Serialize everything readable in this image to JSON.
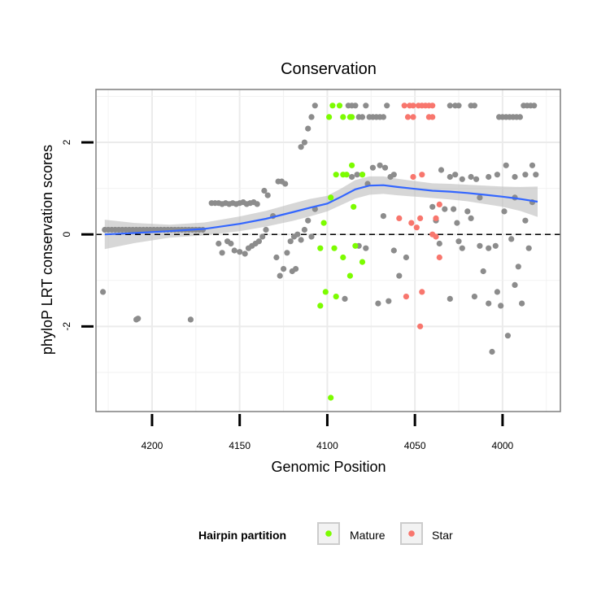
{
  "chart_data": {
    "type": "scatter",
    "title": "Conservation",
    "xlabel": "Genomic Position",
    "ylabel": "phyloP LRT conservation scores",
    "xlim": [
      4232,
      3967
    ],
    "x_reversed": true,
    "ylim": [
      -3.85,
      3.15
    ],
    "xticks": [
      4200,
      4150,
      4100,
      4050,
      4000
    ],
    "xtick_labels": [
      "4200",
      "4150",
      "4100",
      "4050",
      "4000"
    ],
    "yticks": [
      -2,
      0,
      2
    ],
    "ytick_labels": [
      "-2",
      "0",
      "2"
    ],
    "grid": true,
    "reference_line": {
      "y": 0,
      "style": "dashed"
    },
    "legend": {
      "title": "Hairpin partition",
      "position": "bottom",
      "entries": [
        {
          "label": "Mature",
          "color": "#7CFC00"
        },
        {
          "label": "Star",
          "color": "#F8766D"
        }
      ]
    },
    "colors": {
      "other": "#8c8c8c",
      "smooth_line": "#3366FF",
      "ribbon": "#bdbdbd"
    },
    "series": [
      {
        "name": "Other",
        "color": "#8c8c8c",
        "points": [
          [
            4227,
            0.1
          ],
          [
            4225,
            0.1
          ],
          [
            4223,
            0.1
          ],
          [
            4221,
            0.1
          ],
          [
            4219,
            0.1
          ],
          [
            4217,
            0.1
          ],
          [
            4215,
            0.1
          ],
          [
            4213,
            0.1
          ],
          [
            4211,
            0.1
          ],
          [
            4209,
            0.1
          ],
          [
            4207,
            0.1
          ],
          [
            4205,
            0.1
          ],
          [
            4203,
            0.1
          ],
          [
            4201,
            0.1
          ],
          [
            4199,
            0.1
          ],
          [
            4197,
            0.1
          ],
          [
            4195,
            0.1
          ],
          [
            4193,
            0.1
          ],
          [
            4191,
            0.1
          ],
          [
            4189,
            0.1
          ],
          [
            4187,
            0.1
          ],
          [
            4185,
            0.1
          ],
          [
            4183,
            0.1
          ],
          [
            4181,
            0.1
          ],
          [
            4179,
            0.1
          ],
          [
            4177,
            0.1
          ],
          [
            4175,
            0.1
          ],
          [
            4173,
            0.1
          ],
          [
            4171,
            0.1
          ],
          [
            4228,
            -1.25
          ],
          [
            4209,
            -1.85
          ],
          [
            4208,
            -1.83
          ],
          [
            4178,
            -1.85
          ],
          [
            4166,
            0.68
          ],
          [
            4164,
            0.68
          ],
          [
            4162,
            0.68
          ],
          [
            4160,
            0.66
          ],
          [
            4158,
            0.68
          ],
          [
            4156,
            0.66
          ],
          [
            4154,
            0.68
          ],
          [
            4152,
            0.66
          ],
          [
            4150,
            0.68
          ],
          [
            4148,
            0.7
          ],
          [
            4146,
            0.66
          ],
          [
            4144,
            0.68
          ],
          [
            4142,
            0.7
          ],
          [
            4140,
            0.66
          ],
          [
            4162,
            -0.2
          ],
          [
            4160,
            -0.4
          ],
          [
            4157,
            -0.15
          ],
          [
            4155,
            -0.2
          ],
          [
            4153,
            -0.35
          ],
          [
            4150,
            -0.38
          ],
          [
            4147,
            -0.42
          ],
          [
            4145,
            -0.3
          ],
          [
            4143,
            -0.25
          ],
          [
            4141,
            -0.2
          ],
          [
            4139,
            -0.15
          ],
          [
            4137,
            -0.05
          ],
          [
            4135,
            0.1
          ],
          [
            4136,
            0.95
          ],
          [
            4134,
            0.85
          ],
          [
            4131,
            0.4
          ],
          [
            4129,
            -0.5
          ],
          [
            4127,
            -0.9
          ],
          [
            4125,
            -0.75
          ],
          [
            4123,
            -0.4
          ],
          [
            4121,
            -0.15
          ],
          [
            4119,
            -0.05
          ],
          [
            4117,
            0.0
          ],
          [
            4115,
            -0.12
          ],
          [
            4113,
            0.1
          ],
          [
            4111,
            0.3
          ],
          [
            4109,
            -0.05
          ],
          [
            4107,
            0.55
          ],
          [
            4128,
            1.15
          ],
          [
            4126,
            1.15
          ],
          [
            4124,
            1.1
          ],
          [
            4120,
            -0.8
          ],
          [
            4118,
            -0.75
          ],
          [
            4115,
            1.9
          ],
          [
            4113,
            2.0
          ],
          [
            4111,
            2.3
          ],
          [
            4109,
            2.55
          ],
          [
            4107,
            2.8
          ],
          [
            4088,
            2.8
          ],
          [
            4086,
            2.8
          ],
          [
            4084,
            2.8
          ],
          [
            4082,
            2.55
          ],
          [
            4080,
            2.55
          ],
          [
            4078,
            2.8
          ],
          [
            4076,
            2.55
          ],
          [
            4074,
            2.55
          ],
          [
            4072,
            2.55
          ],
          [
            4070,
            2.55
          ],
          [
            4068,
            2.55
          ],
          [
            4066,
            2.8
          ],
          [
            4086,
            1.25
          ],
          [
            4083,
            1.3
          ],
          [
            4080,
            1.3
          ],
          [
            4077,
            1.1
          ],
          [
            4074,
            1.45
          ],
          [
            4070,
            1.5
          ],
          [
            4067,
            1.45
          ],
          [
            4064,
            1.25
          ],
          [
            4062,
            1.3
          ],
          [
            4090,
            -1.4
          ],
          [
            4082,
            -0.25
          ],
          [
            4078,
            -0.3
          ],
          [
            4071,
            -1.5
          ],
          [
            4068,
            0.4
          ],
          [
            4065,
            -1.45
          ],
          [
            4062,
            -0.35
          ],
          [
            4059,
            -0.9
          ],
          [
            4055,
            -0.5
          ],
          [
            4030,
            2.8
          ],
          [
            4027,
            2.8
          ],
          [
            4025,
            2.8
          ],
          [
            4018,
            2.8
          ],
          [
            4016,
            2.8
          ],
          [
            4002,
            2.55
          ],
          [
            4000,
            2.55
          ],
          [
            3998,
            2.55
          ],
          [
            3996,
            2.55
          ],
          [
            3994,
            2.55
          ],
          [
            3992,
            2.55
          ],
          [
            3990,
            2.55
          ],
          [
            3988,
            2.8
          ],
          [
            3986,
            2.8
          ],
          [
            3984,
            2.8
          ],
          [
            3982,
            2.8
          ],
          [
            4035,
            1.4
          ],
          [
            4030,
            1.25
          ],
          [
            4027,
            1.3
          ],
          [
            4023,
            1.2
          ],
          [
            4018,
            1.25
          ],
          [
            4015,
            1.2
          ],
          [
            4008,
            1.25
          ],
          [
            4003,
            1.3
          ],
          [
            3998,
            1.5
          ],
          [
            3993,
            1.25
          ],
          [
            3987,
            1.3
          ],
          [
            3983,
            1.5
          ],
          [
            3981,
            1.3
          ],
          [
            4040,
            0.6
          ],
          [
            4038,
            0.3
          ],
          [
            4036,
            -0.2
          ],
          [
            4033,
            0.55
          ],
          [
            4030,
            -1.4
          ],
          [
            4026,
            0.25
          ],
          [
            4023,
            -0.3
          ],
          [
            4018,
            0.35
          ],
          [
            4016,
            -1.35
          ],
          [
            4013,
            -0.25
          ],
          [
            4011,
            -0.8
          ],
          [
            4008,
            -1.5
          ],
          [
            4006,
            -2.55
          ],
          [
            4004,
            -0.25
          ],
          [
            4001,
            -1.55
          ],
          [
            3999,
            0.5
          ],
          [
            3997,
            -2.2
          ],
          [
            3995,
            -0.1
          ],
          [
            3993,
            -1.1
          ],
          [
            3991,
            -0.7
          ],
          [
            3989,
            -1.5
          ],
          [
            3987,
            0.3
          ],
          [
            3985,
            -0.3
          ],
          [
            3983,
            0.7
          ],
          [
            4020,
            0.5
          ],
          [
            4013,
            0.8
          ],
          [
            4008,
            -0.3
          ],
          [
            4003,
            -1.25
          ],
          [
            3993,
            0.8
          ],
          [
            4028,
            0.55
          ],
          [
            4025,
            -0.15
          ]
        ]
      },
      {
        "name": "Mature",
        "color": "#7CFC00",
        "points": [
          [
            4097,
            2.8
          ],
          [
            4099,
            2.55
          ],
          [
            4093,
            2.8
          ],
          [
            4091,
            2.55
          ],
          [
            4086,
            2.55
          ],
          [
            4087,
            2.55
          ],
          [
            4095,
            1.3
          ],
          [
            4091,
            1.3
          ],
          [
            4089,
            1.3
          ],
          [
            4086,
            1.5
          ],
          [
            4080,
            1.3
          ],
          [
            4098,
            0.8
          ],
          [
            4085,
            0.6
          ],
          [
            4102,
            0.25
          ],
          [
            4104,
            -0.3
          ],
          [
            4096,
            -0.3
          ],
          [
            4091,
            -0.5
          ],
          [
            4087,
            -0.9
          ],
          [
            4084,
            -0.25
          ],
          [
            4080,
            -0.6
          ],
          [
            4101,
            -1.25
          ],
          [
            4095,
            -1.35
          ],
          [
            4104,
            -1.55
          ],
          [
            4098,
            -3.55
          ]
        ]
      },
      {
        "name": "Star",
        "color": "#F8766D",
        "points": [
          [
            4056,
            2.8
          ],
          [
            4053,
            2.8
          ],
          [
            4051,
            2.8
          ],
          [
            4048,
            2.8
          ],
          [
            4046,
            2.8
          ],
          [
            4044,
            2.8
          ],
          [
            4042,
            2.8
          ],
          [
            4040,
            2.8
          ],
          [
            4054,
            2.55
          ],
          [
            4051,
            2.55
          ],
          [
            4042,
            2.55
          ],
          [
            4040,
            2.55
          ],
          [
            4051,
            1.25
          ],
          [
            4046,
            1.3
          ],
          [
            4059,
            0.35
          ],
          [
            4052,
            0.25
          ],
          [
            4049,
            0.15
          ],
          [
            4047,
            0.35
          ],
          [
            4040,
            0.0
          ],
          [
            4038,
            0.35
          ],
          [
            4036,
            0.65
          ],
          [
            4038,
            -0.05
          ],
          [
            4036,
            -0.5
          ],
          [
            4055,
            -1.35
          ],
          [
            4046,
            -1.25
          ],
          [
            4047,
            -2.0
          ]
        ]
      }
    ],
    "smooth": {
      "x": [
        4227,
        4210,
        4190,
        4170,
        4150,
        4135,
        4120,
        4110,
        4100,
        4092,
        4084,
        4076,
        4068,
        4060,
        4050,
        4040,
        4030,
        4020,
        4010,
        4000,
        3990,
        3980
      ],
      "y": [
        0.0,
        0.03,
        0.07,
        0.12,
        0.23,
        0.34,
        0.48,
        0.58,
        0.67,
        0.82,
        0.98,
        1.06,
        1.07,
        1.03,
        0.99,
        0.95,
        0.93,
        0.9,
        0.86,
        0.82,
        0.77,
        0.71
      ],
      "se": [
        0.32,
        0.22,
        0.14,
        0.14,
        0.16,
        0.17,
        0.19,
        0.19,
        0.17,
        0.18,
        0.2,
        0.2,
        0.19,
        0.18,
        0.17,
        0.16,
        0.17,
        0.18,
        0.2,
        0.22,
        0.26,
        0.33
      ]
    }
  }
}
